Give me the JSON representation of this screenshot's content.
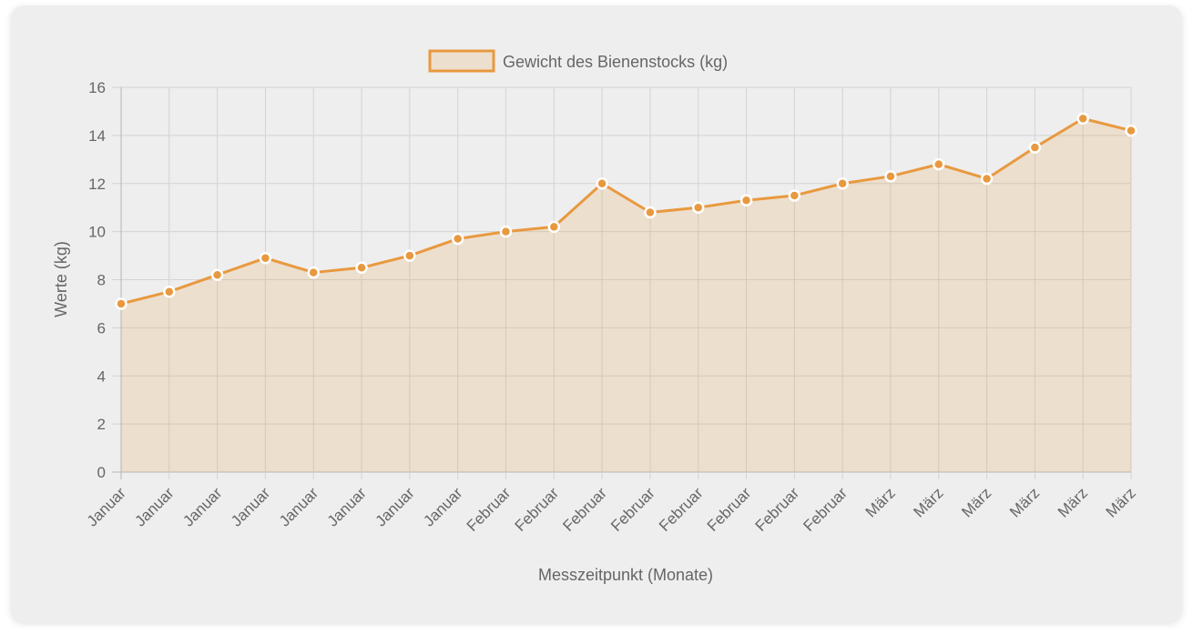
{
  "chart_data": {
    "type": "line",
    "fill": true,
    "categories": [
      "Januar",
      "Januar",
      "Januar",
      "Januar",
      "Januar",
      "Januar",
      "Januar",
      "Januar",
      "Februar",
      "Februar",
      "Februar",
      "Februar",
      "Februar",
      "Februar",
      "Februar",
      "Februar",
      "März",
      "März",
      "März",
      "März",
      "März",
      "März"
    ],
    "series": [
      {
        "name": "Gewicht des Bienenstocks (kg)",
        "values": [
          7.0,
          7.5,
          8.2,
          8.9,
          8.3,
          8.5,
          9.0,
          9.7,
          10.0,
          10.2,
          12.0,
          10.8,
          11.0,
          11.3,
          11.5,
          12.0,
          12.3,
          12.8,
          12.2,
          13.5,
          14.7,
          14.2
        ],
        "color": "#e8993f",
        "fill_color": "rgba(232,153,63,0.18)"
      }
    ],
    "xlabel": "Messzeitpunkt (Monate)",
    "ylabel": "Werte (kg)",
    "ylim": [
      0,
      16
    ],
    "yticks": [
      0,
      2,
      4,
      6,
      8,
      10,
      12,
      14,
      16
    ],
    "grid": true,
    "legend_position": "top-center"
  }
}
